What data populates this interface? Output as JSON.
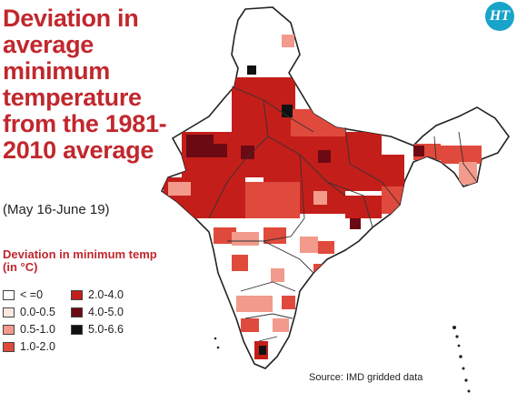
{
  "title": "Deviation in average minimum temperature from the 1981-2010 average",
  "subtitle": "(May 16-June 19)",
  "legend": {
    "title": "Deviation in minimum temp (in °C)",
    "items": [
      {
        "label": "< =0",
        "color": "#ffffff"
      },
      {
        "label": "0.0-0.5",
        "color": "#fde6e0"
      },
      {
        "label": "0.5-1.0",
        "color": "#f29a8c"
      },
      {
        "label": "1.0-2.0",
        "color": "#e04a3c"
      },
      {
        "label": "2.0-4.0",
        "color": "#c41e1a"
      },
      {
        "label": "4.0-5.0",
        "color": "#6b0a12"
      },
      {
        "label": "5.0-6.6",
        "color": "#111111"
      }
    ]
  },
  "source": "Source: IMD gridded data",
  "logo": {
    "text": "HT",
    "color": "#18a3c9"
  }
}
